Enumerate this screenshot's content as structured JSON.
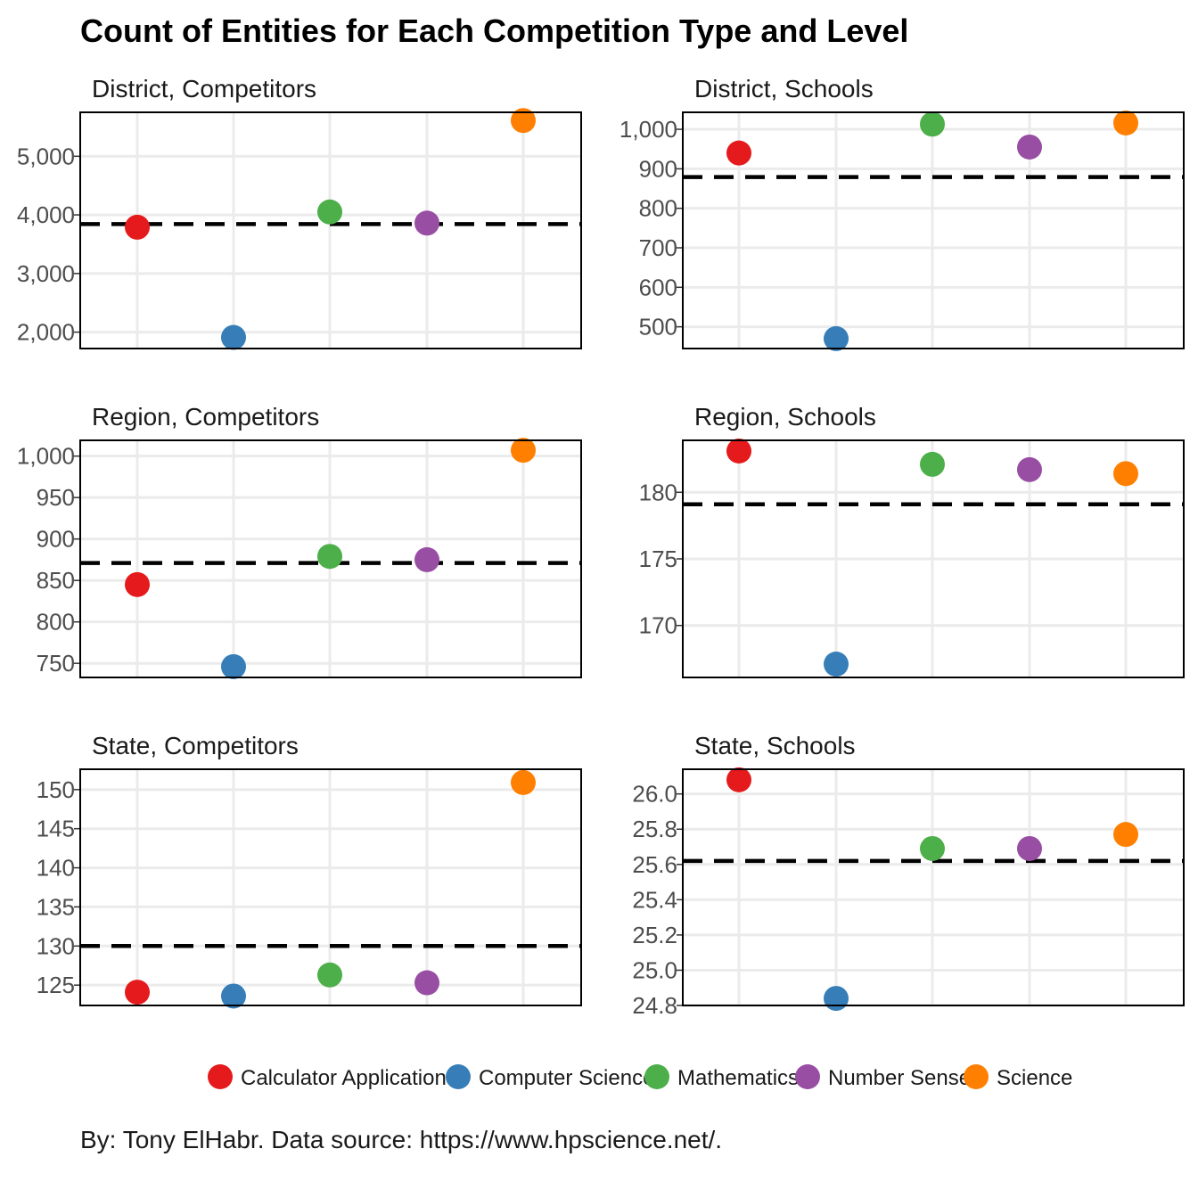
{
  "chart_data": {
    "type": "scatter",
    "title": "Count of Entities for Each Competition Type and Level",
    "caption": "By: Tony ElHabr. Data source: https://www.hpscience.net/.",
    "series_names": [
      "Calculator Applications",
      "Computer Science",
      "Mathematics",
      "Number Sense",
      "Science"
    ],
    "colors": {
      "Calculator Applications": "#E41A1C",
      "Computer Science": "#377EB8",
      "Mathematics": "#4DAF4A",
      "Number Sense": "#984EA3",
      "Science": "#FF7F00"
    },
    "legend_position": "bottom",
    "grid": true,
    "panels": [
      {
        "label": "District, Competitors",
        "ylim": [
          1720,
          5750
        ],
        "ticks": [
          2000,
          3000,
          4000,
          5000
        ],
        "tick_labels": [
          "2,000",
          "3,000",
          "4,000",
          "5,000"
        ],
        "values": [
          3790,
          1910,
          4050,
          3860,
          5610
        ],
        "mean": 3844
      },
      {
        "label": "District, Schools",
        "ylim": [
          445,
          1043
        ],
        "ticks": [
          500,
          600,
          700,
          800,
          900,
          1000
        ],
        "tick_labels": [
          "500",
          "600",
          "700",
          "800",
          "900",
          "1,000"
        ],
        "values": [
          940,
          470,
          1013,
          955,
          1016
        ],
        "mean": 879
      },
      {
        "label": "Region, Competitors",
        "ylim": [
          733,
          1019
        ],
        "ticks": [
          750,
          800,
          850,
          900,
          950,
          1000
        ],
        "tick_labels": [
          "750",
          "800",
          "850",
          "900",
          "950",
          "1,000"
        ],
        "values": [
          845,
          746,
          879,
          875,
          1007
        ],
        "mean": 871
      },
      {
        "label": "Region, Schools",
        "ylim": [
          166.1,
          183.9
        ],
        "ticks": [
          170,
          175,
          180
        ],
        "tick_labels": [
          "170",
          "175",
          "180"
        ],
        "values": [
          183.1,
          167.1,
          182.1,
          181.7,
          181.4
        ],
        "mean": 179.1
      },
      {
        "label": "State, Competitors",
        "ylim": [
          122.4,
          152.6
        ],
        "ticks": [
          125,
          130,
          135,
          140,
          145,
          150
        ],
        "tick_labels": [
          "125",
          "130",
          "135",
          "140",
          "145",
          "150"
        ],
        "values": [
          124.1,
          123.6,
          126.3,
          125.3,
          150.9
        ],
        "mean": 130
      },
      {
        "label": "State, Schools",
        "ylim": [
          24.8,
          26.14
        ],
        "ticks": [
          24.8,
          25.0,
          25.2,
          25.4,
          25.6,
          25.8,
          26.0
        ],
        "tick_labels": [
          "24.8",
          "25.0",
          "25.2",
          "25.4",
          "25.6",
          "25.8",
          "26.0"
        ],
        "values": [
          26.08,
          24.84,
          25.69,
          25.69,
          25.77
        ],
        "mean": 25.62
      }
    ]
  }
}
